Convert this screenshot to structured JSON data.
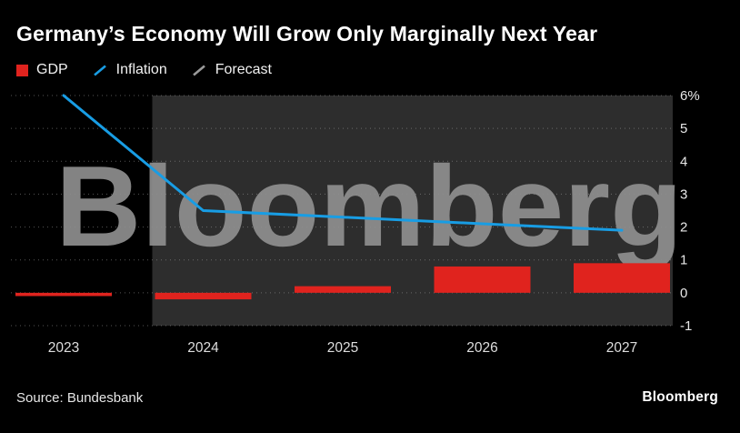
{
  "header": {
    "title": "Germany’s Economy Will Grow Only Marginally Next Year"
  },
  "legend": {
    "items": [
      {
        "label": "GDP",
        "marker": "square-swatch-icon",
        "color": "#e0231e"
      },
      {
        "label": "Inflation",
        "marker": "diagonal-line-icon",
        "color": "#189de4"
      },
      {
        "label": "Forecast",
        "marker": "diagonal-line-icon",
        "color": "#9a9a9a"
      }
    ]
  },
  "watermark": "Bloomberg",
  "footer": {
    "source": "Source: Bundesbank",
    "brand": "Bloomberg"
  },
  "colors": {
    "background": "#000000",
    "forecast_band": "#2d2d2d",
    "gridline": "#9b9b9b",
    "watermark": "#8f8f8f",
    "axis_text": "#e8e8e8",
    "gdp_red": "#e0231e",
    "inflation_blue": "#189de4"
  },
  "chart_data": {
    "type": "bar+line combo",
    "title": "Germany’s Economy Will Grow Only Marginally Next Year",
    "categories": [
      "2023",
      "2024",
      "2025",
      "2026",
      "2027"
    ],
    "series": [
      {
        "name": "GDP",
        "type": "bar",
        "color": "#e0231e",
        "values": [
          -0.1,
          -0.2,
          0.2,
          0.8,
          0.9
        ]
      },
      {
        "name": "Inflation",
        "type": "line",
        "color": "#189de4",
        "values": [
          6.0,
          2.5,
          2.3,
          2.1,
          1.9
        ]
      }
    ],
    "ylim": [
      -1,
      6
    ],
    "yticks": [
      {
        "value": 6,
        "label": "6%"
      },
      {
        "value": 5,
        "label": "5"
      },
      {
        "value": 4,
        "label": "4"
      },
      {
        "value": 3,
        "label": "3"
      },
      {
        "value": 2,
        "label": "2"
      },
      {
        "value": 1,
        "label": "1"
      },
      {
        "value": 0,
        "label": "0"
      },
      {
        "value": -1,
        "label": "-1"
      }
    ],
    "y_axis_side": "right",
    "grid": "dotted-horizontal",
    "legend_position": "top-left",
    "forecast": {
      "label": "Forecast",
      "applies_from_category": "2024",
      "style": "gray-shaded-band"
    },
    "band_color": "#2d2d2d",
    "source": "Source: Bundesbank"
  }
}
